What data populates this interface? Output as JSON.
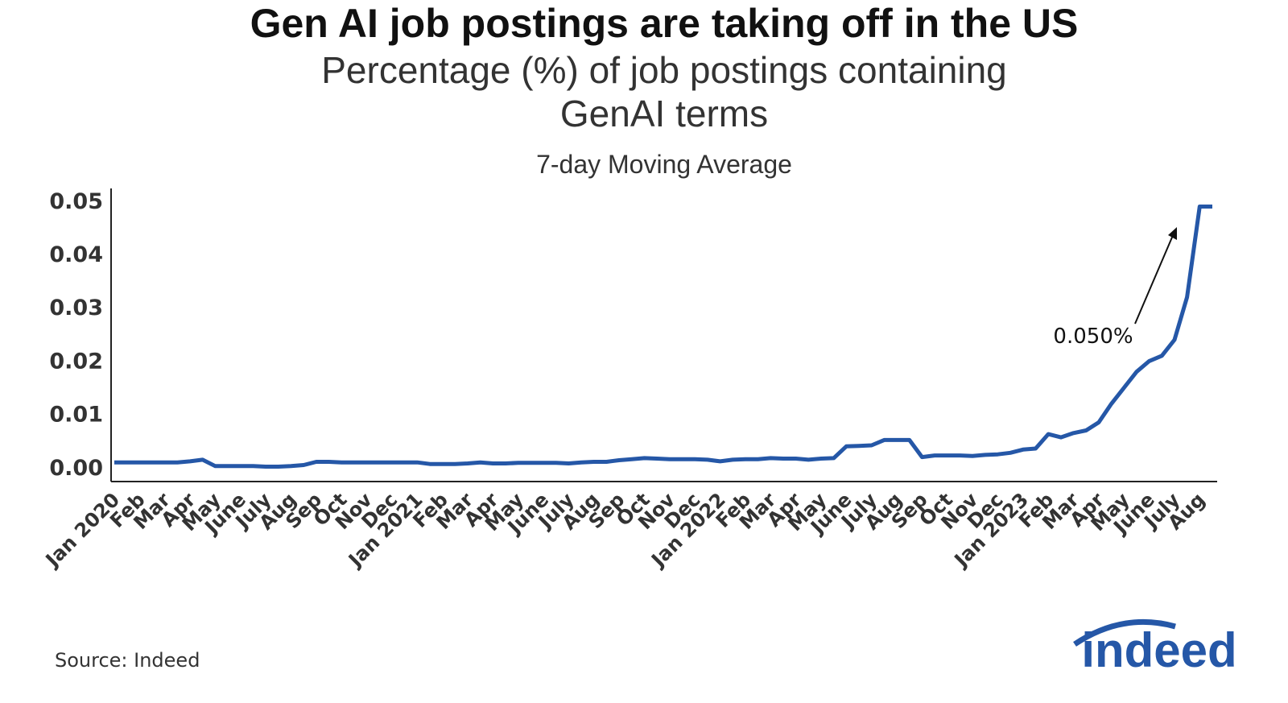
{
  "chart_data": {
    "type": "line",
    "title": "Gen AI job postings are taking off in the US",
    "subtitle": "Percentage (%) of job postings containing GenAI terms",
    "caption": "7-day Moving Average",
    "annotation": "0.050%",
    "source": "Source: Indeed",
    "logo": "indeed",
    "categories": [
      "Jan 2020",
      null,
      "Feb",
      null,
      "Mar",
      null,
      "Apr",
      null,
      "May",
      null,
      "June",
      null,
      "July",
      null,
      "Aug",
      null,
      "Sep",
      null,
      "Oct",
      null,
      "Nov",
      null,
      "Dec",
      null,
      "Jan 2021",
      null,
      "Feb",
      null,
      "Mar",
      null,
      "Apr",
      null,
      "May",
      null,
      "June",
      null,
      "July",
      null,
      "Aug",
      null,
      "Sep",
      null,
      "Oct",
      null,
      "Nov",
      null,
      "Dec",
      null,
      "Jan 2022",
      null,
      "Feb",
      null,
      "Mar",
      null,
      "Apr",
      null,
      "May",
      null,
      "June",
      null,
      "July",
      null,
      "Aug",
      null,
      "Sep",
      null,
      "Oct",
      null,
      "Nov",
      null,
      "Dec",
      null,
      "Jan 2023",
      null,
      "Feb",
      null,
      "Mar",
      null,
      "Apr",
      null,
      "May",
      null,
      "June",
      null,
      "July",
      null,
      "Aug",
      null
    ],
    "values": [
      0.001,
      0.001,
      0.001,
      0.001,
      0.001,
      0.001,
      0.0012,
      0.0015,
      0.0003,
      0.0003,
      0.0003,
      0.0003,
      0.0002,
      0.0002,
      0.0003,
      0.0005,
      0.0011,
      0.0011,
      0.001,
      0.001,
      0.001,
      0.001,
      0.001,
      0.001,
      0.001,
      0.0007,
      0.0007,
      0.0007,
      0.0008,
      0.001,
      0.0008,
      0.0008,
      0.0009,
      0.0009,
      0.0009,
      0.0009,
      0.0008,
      0.001,
      0.0011,
      0.0011,
      0.0014,
      0.0016,
      0.0018,
      0.0017,
      0.0016,
      0.0016,
      0.0016,
      0.0015,
      0.0012,
      0.0015,
      0.0016,
      0.0016,
      0.0018,
      0.0017,
      0.0017,
      0.0015,
      0.0017,
      0.0018,
      0.004,
      0.0041,
      0.0042,
      0.0052,
      0.0052,
      0.0052,
      0.002,
      0.0023,
      0.0023,
      0.0023,
      0.0022,
      0.0024,
      0.0025,
      0.0028,
      0.0034,
      0.0036,
      0.0063,
      0.0057,
      0.0065,
      0.007,
      0.0085,
      0.012,
      0.015,
      0.018,
      0.02,
      0.021,
      0.024,
      0.032,
      0.049,
      0.049
    ],
    "color": "#2557a7",
    "ylim": [
      -0.0026,
      0.0524
    ],
    "yticks": [
      {
        "value": 0,
        "label": "0.00"
      },
      {
        "value": 0.01,
        "label": "0.01"
      },
      {
        "value": 0.02,
        "label": "0.02"
      },
      {
        "value": 0.03,
        "label": "0.03"
      },
      {
        "value": 0.04,
        "label": "0.04"
      },
      {
        "value": 0.05,
        "label": "0.05"
      }
    ],
    "grid": false
  }
}
